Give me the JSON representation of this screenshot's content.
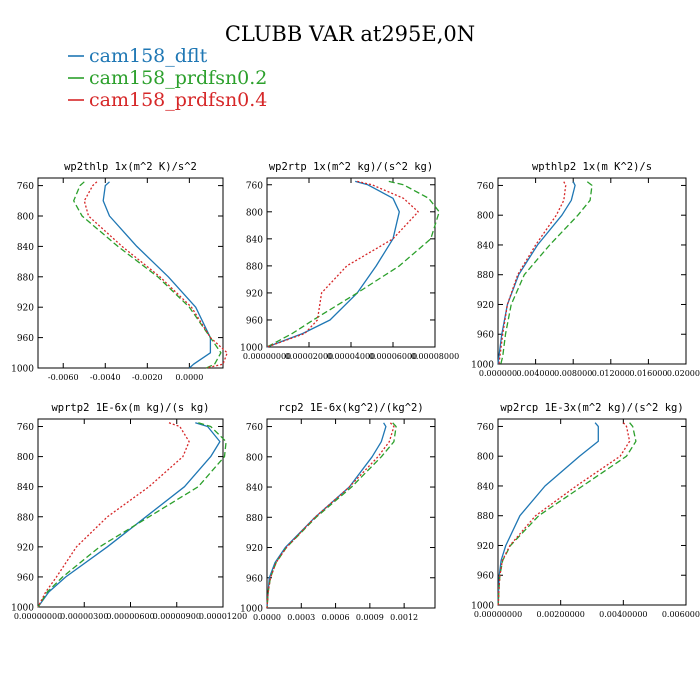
{
  "title": "CLUBB VAR at295E,0N",
  "legend": [
    {
      "name": "cam158_dflt",
      "color": "#1f77b4",
      "dash": "solid"
    },
    {
      "name": "cam158_prdfsn0.2",
      "color": "#2ca02c",
      "dash": "dashed"
    },
    {
      "name": "cam158_prdfsn0.4",
      "color": "#d62728",
      "dash": "dotted"
    }
  ],
  "chart_data": [
    {
      "type": "line",
      "title": "wp2thlp   1x(m^2 K)/s^2",
      "xlim": [
        -0.0072,
        0.0016
      ],
      "ylim": [
        1000,
        750
      ],
      "yticks": [
        760,
        800,
        840,
        880,
        920,
        960,
        1000
      ],
      "xticks": [
        -0.006,
        -0.004,
        -0.002,
        0.0
      ],
      "xtick_labels": [
        "-0.0060",
        "-0.0040",
        "-0.0020",
        "0.0000"
      ],
      "y": [
        755,
        760,
        780,
        800,
        840,
        880,
        920,
        960,
        980,
        995,
        1000
      ],
      "series": [
        {
          "name": "cam158_dflt",
          "values": [
            -0.0038,
            -0.004,
            -0.0041,
            -0.0038,
            -0.0025,
            -0.001,
            0.0003,
            0.001,
            0.001,
            0.0002,
            0.0
          ]
        },
        {
          "name": "cam158_prdfsn0.2",
          "values": [
            -0.005,
            -0.0052,
            -0.0055,
            -0.0051,
            -0.0034,
            -0.0015,
            0.0,
            0.001,
            0.0015,
            0.0012,
            0.0008
          ]
        },
        {
          "name": "cam158_prdfsn0.4",
          "values": [
            -0.0044,
            -0.0046,
            -0.005,
            -0.0048,
            -0.0032,
            -0.0014,
            0.0001,
            0.001,
            0.0018,
            0.0016,
            0.0008
          ]
        }
      ]
    },
    {
      "type": "line",
      "title": "wp2rtp   1x(m^2 kg)/(s^2 kg)",
      "xlim": [
        0.0,
        8e-05
      ],
      "ylim": [
        1000,
        750
      ],
      "yticks": [
        760,
        800,
        840,
        880,
        920,
        960,
        1000
      ],
      "xticks": [
        0.0,
        2e-05,
        4e-05,
        6e-05,
        8e-05
      ],
      "xtick_labels": [
        "0.00000000",
        "0.00002000",
        "0.00004000",
        "0.00006000",
        "0.00008000"
      ],
      "y": [
        755,
        760,
        780,
        800,
        840,
        880,
        920,
        960,
        980,
        1000
      ],
      "series": [
        {
          "name": "cam158_dflt",
          "values": [
            4.2e-05,
            4.8e-05,
            6e-05,
            6.3e-05,
            6e-05,
            5.2e-05,
            4.3e-05,
            3e-05,
            1.7e-05,
            0.0
          ]
        },
        {
          "name": "cam158_prdfsn0.2",
          "values": [
            5.8e-05,
            6.5e-05,
            7.7e-05,
            8.2e-05,
            7.8e-05,
            6.3e-05,
            4.3e-05,
            2.2e-05,
            1.2e-05,
            0.0
          ]
        },
        {
          "name": "cam158_prdfsn0.4",
          "values": [
            4.3e-05,
            5e-05,
            6.5e-05,
            7.2e-05,
            6e-05,
            3.8e-05,
            2.6e-05,
            2.4e-05,
            1.8e-05,
            0.0
          ]
        }
      ]
    },
    {
      "type": "line",
      "title": "wpthlp2   1x(m K^2)/s",
      "xlim": [
        0.0,
        0.02
      ],
      "ylim": [
        1000,
        750
      ],
      "yticks": [
        760,
        800,
        840,
        880,
        920,
        960,
        1000
      ],
      "xticks": [
        0.0,
        0.004,
        0.008,
        0.012,
        0.016,
        0.02
      ],
      "xtick_labels": [
        "0.000000",
        "0.004000",
        "0.008000",
        "0.012000",
        "0.016000",
        "0.020000"
      ],
      "y": [
        755,
        760,
        780,
        800,
        840,
        880,
        920,
        960,
        990,
        1000
      ],
      "series": [
        {
          "name": "cam158_dflt",
          "values": [
            0.008,
            0.0082,
            0.0078,
            0.0068,
            0.0042,
            0.0022,
            0.001,
            0.0004,
            0.0001,
            0.0
          ]
        },
        {
          "name": "cam158_prdfsn0.2",
          "values": [
            0.0095,
            0.01,
            0.0098,
            0.0085,
            0.0055,
            0.0028,
            0.0014,
            0.0008,
            0.0005,
            0.0003
          ]
        },
        {
          "name": "cam158_prdfsn0.4",
          "values": [
            0.007,
            0.0072,
            0.007,
            0.0062,
            0.004,
            0.0021,
            0.001,
            0.0005,
            0.0002,
            0.0001
          ]
        }
      ]
    },
    {
      "type": "line",
      "title": "wprtp2   1E-6x(m kg)/(s kg)",
      "xlim": [
        0.0,
        1.2e-05
      ],
      "ylim": [
        1000,
        750
      ],
      "yticks": [
        760,
        800,
        840,
        880,
        920,
        960,
        1000
      ],
      "xticks": [
        0.0,
        3e-06,
        6e-06,
        9e-06,
        1.2e-05
      ],
      "xtick_labels": [
        "0.00000000",
        "0.00000300",
        "0.00000600",
        "0.00000900",
        "0.00001200"
      ],
      "y": [
        755,
        760,
        780,
        800,
        840,
        880,
        920,
        960,
        980,
        1000
      ],
      "series": [
        {
          "name": "cam158_dflt",
          "values": [
            1.02e-05,
            1.1e-05,
            1.18e-05,
            1.12e-05,
            9.5e-06,
            7e-06,
            4.5e-06,
            1.8e-06,
            7e-07,
            0.0
          ]
        },
        {
          "name": "cam158_prdfsn0.2",
          "values": [
            1.04e-05,
            1.12e-05,
            1.22e-05,
            1.21e-05,
            1.04e-05,
            7.2e-06,
            4e-06,
            1.6e-06,
            6e-07,
            0.0
          ]
        },
        {
          "name": "cam158_prdfsn0.4",
          "values": [
            8.5e-06,
            9.2e-06,
            9.8e-06,
            9.4e-06,
            7.2e-06,
            4.5e-06,
            2.5e-06,
            1.2e-06,
            5e-07,
            0.0
          ]
        }
      ]
    },
    {
      "type": "line",
      "title": "rcp2   1E-6x(kg^2)/(kg^2)",
      "xlim": [
        0.0,
        0.00147
      ],
      "ylim": [
        1000,
        750
      ],
      "yticks": [
        760,
        800,
        840,
        880,
        920,
        960,
        1000
      ],
      "xticks": [
        0.0,
        0.0003,
        0.0006,
        0.0009,
        0.0012
      ],
      "xtick_labels": [
        "0.0000",
        "0.0003",
        "0.0006",
        "0.0009",
        "0.0012"
      ],
      "y": [
        755,
        760,
        780,
        800,
        840,
        880,
        920,
        940,
        960,
        980,
        1000
      ],
      "series": [
        {
          "name": "cam158_dflt",
          "values": [
            0.00102,
            0.00104,
            0.001,
            0.00092,
            0.00072,
            0.00042,
            0.00016,
            7e-05,
            2e-05,
            1e-05,
            0.0
          ]
        },
        {
          "name": "cam158_prdfsn0.2",
          "values": [
            0.0011,
            0.00113,
            0.00111,
            0.001,
            0.00074,
            0.00043,
            0.00017,
            8e-05,
            3e-05,
            1e-05,
            0.0
          ]
        },
        {
          "name": "cam158_prdfsn0.4",
          "values": [
            0.00108,
            0.00111,
            0.00107,
            0.00097,
            0.00072,
            0.00042,
            0.00017,
            8e-05,
            3e-05,
            1e-05,
            0.0
          ]
        }
      ]
    },
    {
      "type": "line",
      "title": "wp2rcp   1E-3x(m^2 kg)/(s^2 kg)",
      "xlim": [
        0.0,
        0.006
      ],
      "ylim": [
        1000,
        750
      ],
      "yticks": [
        760,
        800,
        840,
        880,
        920,
        960,
        1000
      ],
      "xticks": [
        0.0,
        0.002,
        0.004,
        0.006
      ],
      "xtick_labels": [
        "0.00000000",
        "0.00200000",
        "0.00400000",
        "0.00600000"
      ],
      "y": [
        755,
        760,
        780,
        800,
        840,
        880,
        920,
        940,
        960,
        980,
        1000
      ],
      "series": [
        {
          "name": "cam158_dflt",
          "values": [
            0.0031,
            0.0032,
            0.0032,
            0.0026,
            0.0015,
            0.0007,
            0.00025,
            0.0001,
            4e-05,
            2e-05,
            1e-05
          ]
        },
        {
          "name": "cam158_prdfsn0.2",
          "values": [
            0.0042,
            0.0043,
            0.0044,
            0.0041,
            0.0027,
            0.0013,
            0.0004,
            0.00015,
            6e-05,
            3e-05,
            1e-05
          ]
        },
        {
          "name": "cam158_prdfsn0.4",
          "values": [
            0.004,
            0.0041,
            0.0042,
            0.0039,
            0.0025,
            0.0012,
            0.00038,
            0.00014,
            6e-05,
            3e-05,
            1e-05
          ]
        }
      ]
    }
  ]
}
